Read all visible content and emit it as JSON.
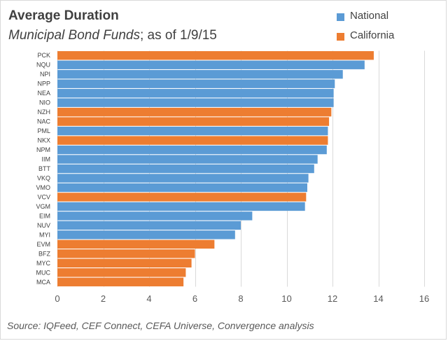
{
  "header": {
    "title": "Average Duration",
    "subtitle_italic": "Municipal Bond Funds",
    "subtitle_rest": "; as of 1/9/15"
  },
  "footer": {
    "source": "Source:  IQFeed, CEF Connect, CEFA Universe, Convergence analysis"
  },
  "colors": {
    "National": "#5b9bd5",
    "California": "#ed7d31",
    "grid": "#d9d9d9",
    "text": "#404040"
  },
  "chart_data": {
    "type": "bar",
    "orientation": "horizontal",
    "title": "Average Duration",
    "subtitle": "Municipal Bond Funds; as of 1/9/15",
    "xlabel": "",
    "ylabel": "",
    "xlim": [
      0,
      16
    ],
    "xticks": [
      0,
      2,
      4,
      6,
      8,
      10,
      12,
      14,
      16
    ],
    "grid": "vertical",
    "legend": {
      "placement": "top-right",
      "entries": [
        "National",
        "California"
      ]
    },
    "categories": [
      "PCK",
      "NQU",
      "NPI",
      "NPP",
      "NEA",
      "NIO",
      "NZH",
      "NAC",
      "PML",
      "NKX",
      "NPM",
      "IIM",
      "BTT",
      "VKQ",
      "VMO",
      "VCV",
      "VGM",
      "EIM",
      "NUV",
      "MYI",
      "EVM",
      "BFZ",
      "MYC",
      "MUC",
      "MCA"
    ],
    "values": [
      13.8,
      13.4,
      12.45,
      12.1,
      12.05,
      12.05,
      11.95,
      11.85,
      11.8,
      11.8,
      11.75,
      11.35,
      11.2,
      10.95,
      10.9,
      10.85,
      10.8,
      8.5,
      8.0,
      7.75,
      6.85,
      6.0,
      5.85,
      5.6,
      5.5
    ],
    "groups": [
      "California",
      "National",
      "National",
      "National",
      "National",
      "National",
      "California",
      "California",
      "National",
      "California",
      "National",
      "National",
      "National",
      "National",
      "National",
      "California",
      "National",
      "National",
      "National",
      "National",
      "California",
      "California",
      "California",
      "California",
      "California"
    ]
  }
}
